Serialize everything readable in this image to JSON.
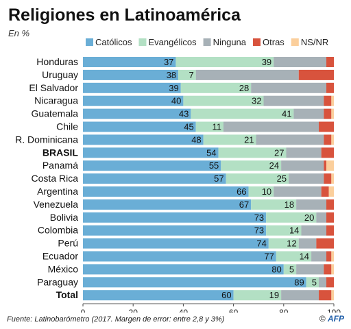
{
  "header": {
    "title": "Religiones en Latinoamérica",
    "subtitle": "En %"
  },
  "footer": {
    "source": "Fuente:  Latinobarómetro (2017.  Margen de error: entre 2,8 y 3%)",
    "copyright": "©",
    "agency": "AFP"
  },
  "chart_data": {
    "type": "bar",
    "orientation": "horizontal",
    "stacked": true,
    "categories": [
      "Honduras",
      "Uruguay",
      "El Salvador",
      "Nicaragua",
      "Guatemala",
      "Chile",
      "R. Dominicana",
      "BRASIL",
      "Panamá",
      "Costa Rica",
      "Argentina",
      "Venezuela",
      "Bolivia",
      "Colombia",
      "Perú",
      "Ecuador",
      "México",
      "Paraguay",
      "Total"
    ],
    "bold_categories": [
      "BRASIL",
      "Total"
    ],
    "series": [
      {
        "name": "Católicos",
        "color": "#6aaed6",
        "values": [
          37,
          38,
          39,
          40,
          43,
          45,
          48,
          54,
          55,
          57,
          66,
          67,
          73,
          73,
          74,
          77,
          80,
          89,
          60
        ]
      },
      {
        "name": "Evangélicos",
        "color": "#b3e0c4",
        "values": [
          39,
          7,
          28,
          32,
          41,
          11,
          21,
          27,
          24,
          25,
          10,
          18,
          20,
          14,
          12,
          14,
          5,
          5,
          19
        ]
      },
      {
        "name": "Ninguna",
        "color": "#a7b1b7",
        "values": [
          21,
          41,
          30,
          24,
          12,
          38,
          27,
          14,
          17,
          14,
          19,
          12,
          4,
          10,
          7,
          6,
          11,
          3,
          15
        ]
      },
      {
        "name": "Otras",
        "color": "#d8533d",
        "values": [
          3,
          14,
          3,
          3,
          3,
          6,
          3,
          5,
          1,
          3,
          3,
          3,
          3,
          3,
          7,
          2,
          3,
          3,
          5
        ]
      },
      {
        "name": "NS/NR",
        "color": "#fbcf9c",
        "values": [
          0,
          0,
          0,
          1,
          1,
          0,
          1,
          0,
          3,
          1,
          2,
          0,
          0,
          0,
          0,
          1,
          1,
          0,
          1
        ]
      }
    ],
    "data_labels": {
      "Católicos": [
        "37",
        "38",
        "39",
        "40",
        "43",
        "45",
        "48",
        "54",
        "55",
        "57",
        "66",
        "67",
        "73",
        "73",
        "74",
        "77",
        "80",
        "89",
        "60"
      ],
      "Evangélicos": [
        "39",
        "7",
        "28",
        "32",
        "41",
        "11",
        "21",
        "27",
        "24",
        "25",
        "10",
        "18",
        "20",
        "14",
        "12",
        "14",
        "5",
        "5",
        "19"
      ]
    },
    "x_ticks": [
      "0",
      "20",
      "40",
      "60",
      "80",
      "100"
    ],
    "xlim": [
      0,
      100
    ],
    "grid": false,
    "legend_position": "top"
  }
}
